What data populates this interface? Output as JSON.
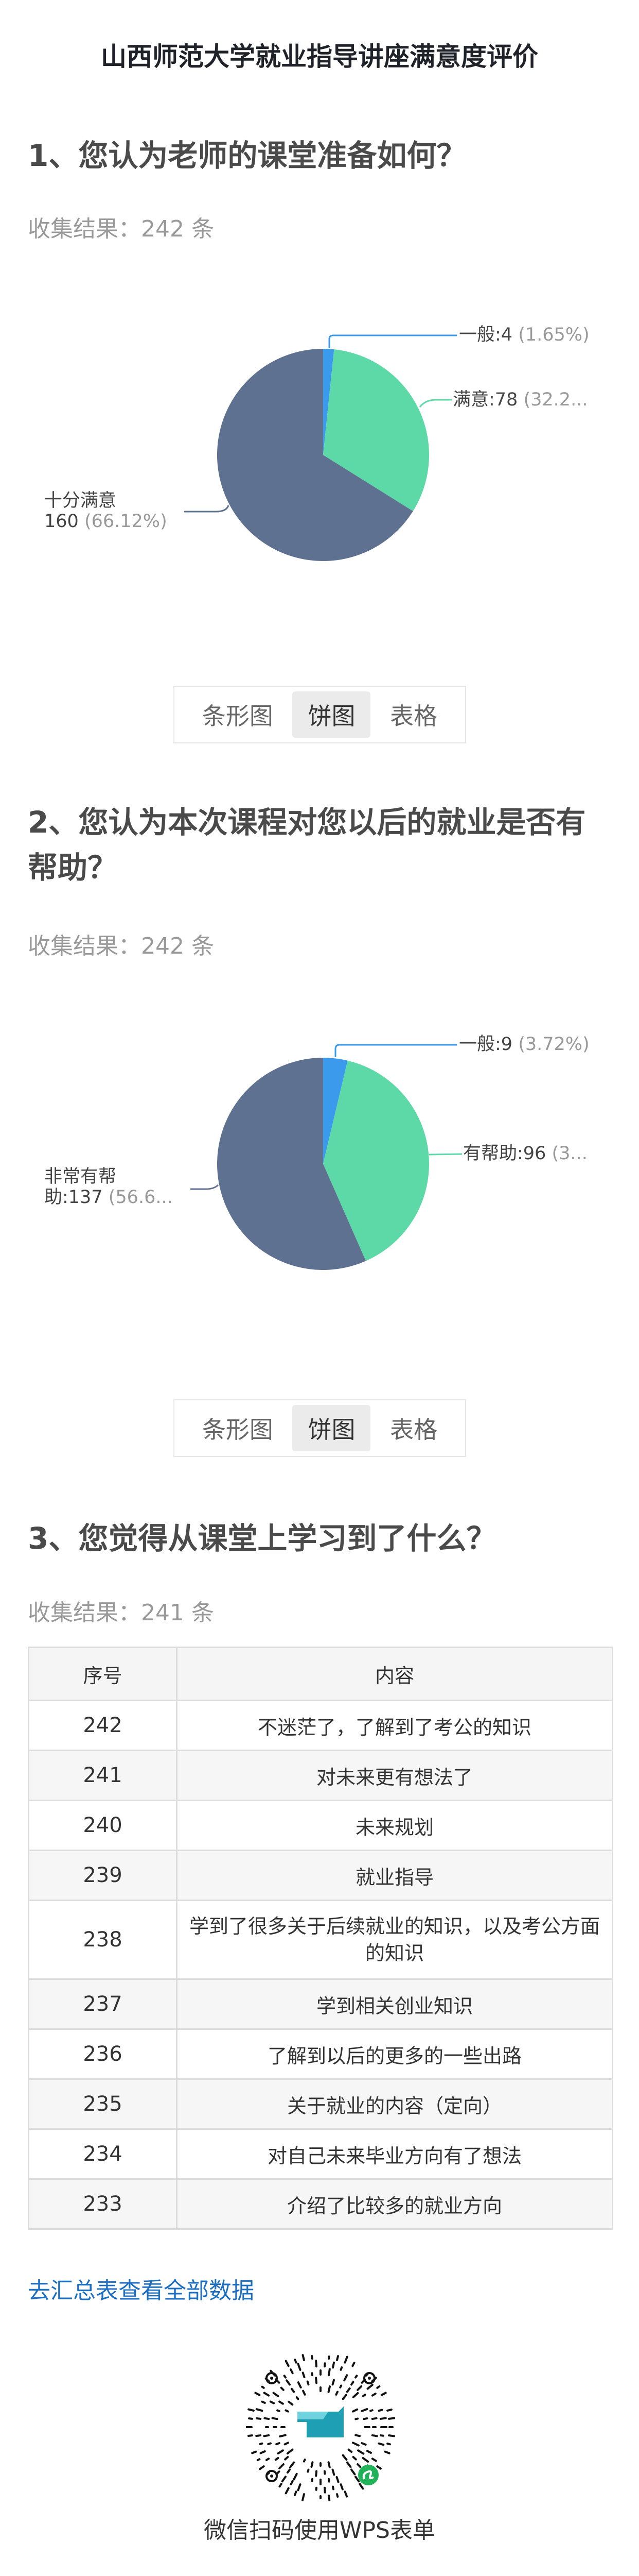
{
  "page_title": "山西师范大学就业指导讲座满意度评价",
  "view_tabs": [
    "条形图",
    "饼图",
    "表格"
  ],
  "colors": {
    "slice_blue": "#3b9aeb",
    "slice_green": "#5dd9a7",
    "slice_slate": "#5e7191",
    "link": "#1b6ec2"
  },
  "questions": [
    {
      "heading": "1、您认为老师的课堂准备如何？",
      "count": "收集结果：242 条",
      "active_tab": "饼图",
      "labels": [
        {
          "main": "一般:4",
          "pct": "(1.65%)"
        },
        {
          "main": "满意:78",
          "pct": "(32.2..."
        },
        {
          "main": "十分满意",
          "main2": "160",
          "pct": "(66.12%)"
        }
      ]
    },
    {
      "heading": "2、您认为本次课程对您以后的就业是否有帮助？",
      "count": "收集结果：242 条",
      "active_tab": "饼图",
      "labels": [
        {
          "main": "一般:9",
          "pct": "(3.72%)"
        },
        {
          "main": "有帮助:96",
          "pct": "(3..."
        },
        {
          "main": "非常有帮",
          "main2": "助:137",
          "pct": "(56.6..."
        }
      ]
    },
    {
      "heading": "3、您觉得从课堂上学习到了什么？",
      "count": "收集结果：241 条",
      "table": {
        "headers": [
          "序号",
          "内容"
        ],
        "rows": [
          [
            "242",
            "不迷茫了，了解到了考公的知识"
          ],
          [
            "241",
            "对未来更有想法了"
          ],
          [
            "240",
            "未来规划"
          ],
          [
            "239",
            "就业指导"
          ],
          [
            "238",
            "学到了很多关于后续就业的知识，以及考公方面的知识"
          ],
          [
            "237",
            "学到相关创业知识"
          ],
          [
            "236",
            "了解到以后的更多的一些出路"
          ],
          [
            "235",
            "关于就业的内容（定向）"
          ],
          [
            "234",
            "对自己未来毕业方向有了想法"
          ],
          [
            "233",
            "介绍了比较多的就业方向"
          ]
        ]
      }
    }
  ],
  "view_all_link": "去汇总表查看全部数据",
  "qr_caption": "微信扫码使用WPS表单",
  "chart_data": [
    {
      "type": "pie",
      "categories": [
        "一般",
        "满意",
        "十分满意"
      ],
      "values": [
        4,
        78,
        160
      ],
      "percentages": [
        1.65,
        32.23,
        66.12
      ]
    },
    {
      "type": "pie",
      "categories": [
        "一般",
        "有帮助",
        "非常有帮助"
      ],
      "values": [
        9,
        96,
        137
      ],
      "percentages": [
        3.72,
        39.67,
        56.61
      ]
    }
  ]
}
